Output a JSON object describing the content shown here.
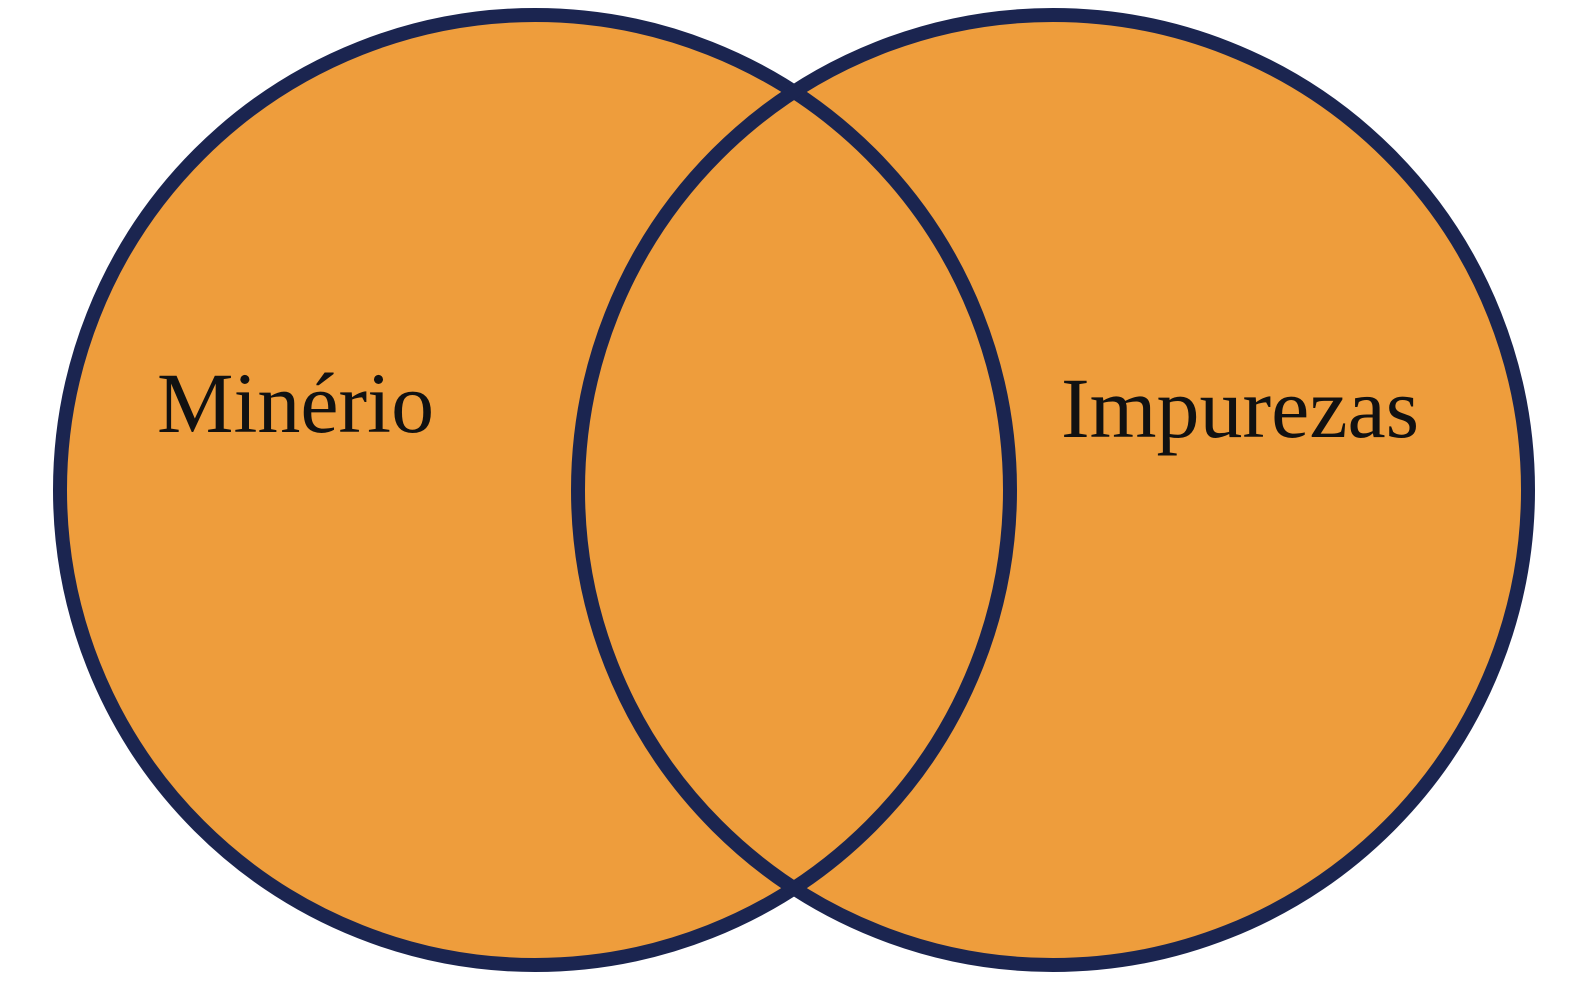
{
  "sets": [
    {
      "id": "left",
      "label": "Minério"
    },
    {
      "id": "right",
      "label": "Impurezas"
    }
  ],
  "colors": {
    "fill": "#EE9D3C",
    "outline": "#1B2550",
    "text": "#111111",
    "background": "#FFFFFF"
  }
}
